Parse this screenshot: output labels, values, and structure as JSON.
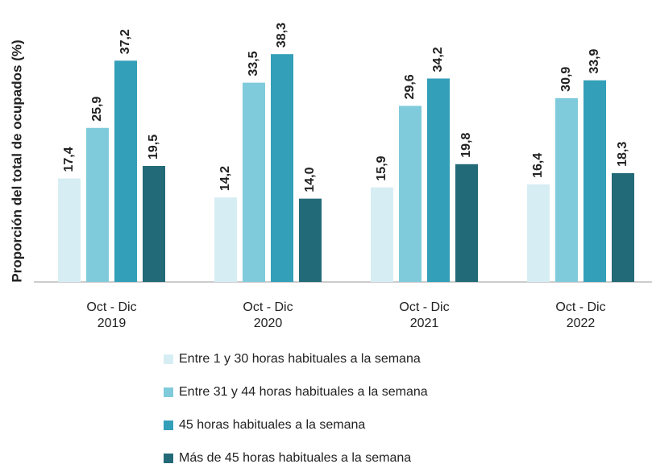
{
  "chart_data": {
    "type": "bar",
    "y_label": "Proporción del total de ocupados (%)",
    "categories": [
      [
        "Oct - Dic",
        "2019"
      ],
      [
        "Oct - Dic",
        "2020"
      ],
      [
        "Oct - Dic",
        "2021"
      ],
      [
        "Oct - Dic",
        "2022"
      ]
    ],
    "ylim": [
      0,
      47.4
    ],
    "series": [
      {
        "name": "Entre 1 y 30 horas habituales a la semana",
        "color": "#d6eef3",
        "values": [
          17.4,
          14.2,
          15.9,
          16.4
        ],
        "value_labels": [
          "17,4",
          "14,2",
          "15,9",
          "16,4"
        ]
      },
      {
        "name": "Entre 31 y 44 horas habituales a la semana",
        "color": "#7fcbdb",
        "values": [
          25.9,
          33.5,
          29.6,
          30.9
        ],
        "value_labels": [
          "25,9",
          "33,5",
          "29,6",
          "30,9"
        ]
      },
      {
        "name": "45 horas habituales a la semana",
        "color": "#339fb8",
        "values": [
          37.2,
          38.3,
          34.2,
          33.9
        ],
        "value_labels": [
          "37,2",
          "38,3",
          "34,2",
          "33,9"
        ]
      },
      {
        "name": "Más de 45 horas habituales a la semana",
        "color": "#236a78",
        "values": [
          19.5,
          14.0,
          19.8,
          18.3
        ],
        "value_labels": [
          "19,5",
          "14,0",
          "19,8",
          "18,3"
        ]
      }
    ],
    "legend": "bottom"
  }
}
